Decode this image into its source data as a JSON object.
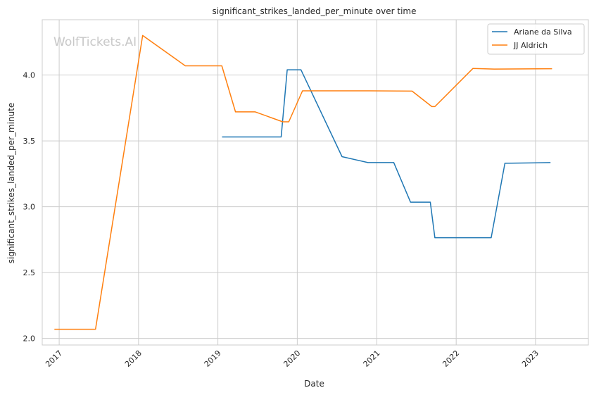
{
  "chart_data": {
    "type": "line",
    "title": "significant_strikes_landed_per_minute over time",
    "xlabel": "Date",
    "ylabel": "significant_strikes_landed_per_minute",
    "watermark": "WolfTickets.AI",
    "grid": true,
    "legend_position": "top-right",
    "xlim": [
      "2016-10-15",
      "2023-09-01"
    ],
    "ylim": [
      1.95,
      4.42
    ],
    "x_ticks": [
      "2017",
      "2018",
      "2019",
      "2020",
      "2021",
      "2022",
      "2023"
    ],
    "y_ticks": [
      "2.0",
      "2.5",
      "3.0",
      "3.5",
      "4.0"
    ],
    "series": [
      {
        "name": "Ariane da Silva",
        "color": "#1f77b4",
        "points": [
          {
            "x": "2019-01-20",
            "y": 3.53
          },
          {
            "x": "2019-10-19",
            "y": 3.53
          },
          {
            "x": "2019-11-16",
            "y": 4.04
          },
          {
            "x": "2020-01-18",
            "y": 4.04
          },
          {
            "x": "2020-07-25",
            "y": 3.38
          },
          {
            "x": "2020-11-21",
            "y": 3.335
          },
          {
            "x": "2021-03-20",
            "y": 3.335
          },
          {
            "x": "2021-06-05",
            "y": 3.035
          },
          {
            "x": "2021-09-04",
            "y": 3.035
          },
          {
            "x": "2021-09-25",
            "y": 2.765
          },
          {
            "x": "2022-06-11",
            "y": 2.765
          },
          {
            "x": "2022-08-13",
            "y": 3.33
          },
          {
            "x": "2023-03-11",
            "y": 3.335
          }
        ]
      },
      {
        "name": "JJ Aldrich",
        "color": "#ff7f0e",
        "points": [
          {
            "x": "2016-12-10",
            "y": 2.07
          },
          {
            "x": "2017-06-17",
            "y": 2.07
          },
          {
            "x": "2018-01-20",
            "y": 4.3
          },
          {
            "x": "2018-08-04",
            "y": 4.07
          },
          {
            "x": "2019-01-19",
            "y": 4.07
          },
          {
            "x": "2019-03-23",
            "y": 3.72
          },
          {
            "x": "2019-06-22",
            "y": 3.72
          },
          {
            "x": "2019-10-26",
            "y": 3.645
          },
          {
            "x": "2019-11-23",
            "y": 3.645
          },
          {
            "x": "2020-01-25",
            "y": 3.88
          },
          {
            "x": "2020-11-28",
            "y": 3.88
          },
          {
            "x": "2021-06-12",
            "y": 3.878
          },
          {
            "x": "2021-09-11",
            "y": 3.76
          },
          {
            "x": "2021-09-25",
            "y": 3.76
          },
          {
            "x": "2022-03-19",
            "y": 4.05
          },
          {
            "x": "2022-06-25",
            "y": 4.045
          },
          {
            "x": "2023-03-18",
            "y": 4.048
          }
        ]
      }
    ]
  }
}
